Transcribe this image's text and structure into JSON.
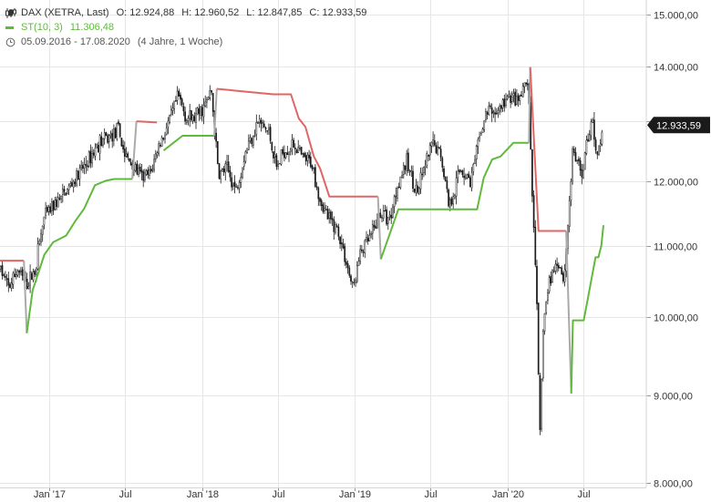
{
  "legend": {
    "title": "DAX (XETRA, Last)",
    "ohlc": [
      {
        "k": "O:",
        "v": "12.924,88"
      },
      {
        "k": "H:",
        "v": "12.960,52"
      },
      {
        "k": "L:",
        "v": "12.847,85"
      },
      {
        "k": "C:",
        "v": "12.933,59"
      }
    ],
    "indicator_name": "ST(10, 3)",
    "indicator_value": "11.306,48",
    "range": "05.09.2016 - 17.08.2020",
    "duration": "(4 Jahre, 1 Woche)"
  },
  "chart_data": {
    "type": "line",
    "yscale": "log",
    "ylim": [
      7950,
      15300
    ],
    "y_ticks": [
      {
        "v": 15000,
        "label": "15.000,00"
      },
      {
        "v": 14000,
        "label": "14.000,00"
      },
      {
        "v": 13000,
        "label": "13.000,00"
      },
      {
        "v": 12000,
        "label": "12.000,00"
      },
      {
        "v": 11000,
        "label": "11.000,00"
      },
      {
        "v": 10000,
        "label": "10.000,00"
      },
      {
        "v": 9000,
        "label": "9.000,00"
      },
      {
        "v": 8000,
        "label": "8.000,00"
      }
    ],
    "xlim": [
      "2016-09-05",
      "2020-08-17"
    ],
    "x_ticks": [
      {
        "d": "2017-01-01",
        "label": "Jan '17"
      },
      {
        "d": "2017-07-01",
        "label": "Jul"
      },
      {
        "d": "2018-01-01",
        "label": "Jan '18"
      },
      {
        "d": "2018-07-01",
        "label": "Jul"
      },
      {
        "d": "2019-01-01",
        "label": "Jan '19"
      },
      {
        "d": "2019-07-01",
        "label": "Jul"
      },
      {
        "d": "2020-01-01",
        "label": "Jan '20"
      },
      {
        "d": "2020-07-01",
        "label": "Jul"
      }
    ],
    "last_close": {
      "v": 12933.59,
      "label": "12.933,59"
    },
    "grid": true,
    "colors": {
      "candles": "#1a1a1a",
      "st_up": "#5fba3c",
      "st_down": "#e06666",
      "st_flip": "#aaaaaa",
      "last_label_bg": "#1a1a1a",
      "grid": "#e6e6e6"
    },
    "series": [
      {
        "name": "DAX (XETRA, Last)",
        "kind": "close",
        "points": [
          [
            "2016-09-05",
            10670
          ],
          [
            "2016-09-26",
            10390
          ],
          [
            "2016-10-17",
            10650
          ],
          [
            "2016-11-07",
            10430
          ],
          [
            "2016-11-28",
            10650
          ],
          [
            "2016-12-05",
            10950
          ],
          [
            "2016-12-19",
            11400
          ],
          [
            "2017-01-09",
            11600
          ],
          [
            "2017-02-01",
            11750
          ],
          [
            "2017-03-01",
            12000
          ],
          [
            "2017-04-01",
            12300
          ],
          [
            "2017-05-01",
            12650
          ],
          [
            "2017-05-20",
            12700
          ],
          [
            "2017-06-15",
            12850
          ],
          [
            "2017-07-01",
            12400
          ],
          [
            "2017-07-20",
            12250
          ],
          [
            "2017-08-10",
            12050
          ],
          [
            "2017-08-30",
            12100
          ],
          [
            "2017-09-15",
            12500
          ],
          [
            "2017-10-15",
            13000
          ],
          [
            "2017-11-05",
            13450
          ],
          [
            "2017-11-25",
            13050
          ],
          [
            "2017-12-15",
            13050
          ],
          [
            "2018-01-10",
            13300
          ],
          [
            "2018-01-23",
            13550
          ],
          [
            "2018-02-09",
            12100
          ],
          [
            "2018-03-01",
            12200
          ],
          [
            "2018-03-23",
            11850
          ],
          [
            "2018-04-15",
            12500
          ],
          [
            "2018-05-15",
            13000
          ],
          [
            "2018-06-10",
            12800
          ],
          [
            "2018-06-28",
            12200
          ],
          [
            "2018-07-15",
            12500
          ],
          [
            "2018-08-10",
            12600
          ],
          [
            "2018-08-30",
            12350
          ],
          [
            "2018-09-20",
            12300
          ],
          [
            "2018-10-10",
            11700
          ],
          [
            "2018-10-30",
            11400
          ],
          [
            "2018-11-20",
            11250
          ],
          [
            "2018-12-10",
            10800
          ],
          [
            "2018-12-27",
            10380
          ],
          [
            "2019-01-15",
            10900
          ],
          [
            "2019-02-10",
            11150
          ],
          [
            "2019-03-01",
            11500
          ],
          [
            "2019-03-25",
            11400
          ],
          [
            "2019-04-15",
            12000
          ],
          [
            "2019-05-05",
            12300
          ],
          [
            "2019-05-30",
            11800
          ],
          [
            "2019-06-20",
            12300
          ],
          [
            "2019-07-05",
            12600
          ],
          [
            "2019-07-25",
            12450
          ],
          [
            "2019-08-15",
            11600
          ],
          [
            "2019-09-10",
            12200
          ],
          [
            "2019-10-05",
            12000
          ],
          [
            "2019-10-30",
            12850
          ],
          [
            "2019-11-15",
            13200
          ],
          [
            "2019-12-05",
            13150
          ],
          [
            "2019-12-20",
            13300
          ],
          [
            "2020-01-10",
            13450
          ],
          [
            "2020-01-25",
            13300
          ],
          [
            "2020-02-19",
            13750
          ],
          [
            "2020-02-28",
            11900
          ],
          [
            "2020-03-09",
            10600
          ],
          [
            "2020-03-18",
            8450
          ],
          [
            "2020-03-26",
            9900
          ],
          [
            "2020-04-10",
            10500
          ],
          [
            "2020-04-30",
            10800
          ],
          [
            "2020-05-15",
            10500
          ],
          [
            "2020-06-05",
            12500
          ],
          [
            "2020-06-26",
            12100
          ],
          [
            "2020-07-10",
            12700
          ],
          [
            "2020-07-22",
            13100
          ],
          [
            "2020-07-31",
            12300
          ],
          [
            "2020-08-17",
            12933
          ]
        ]
      },
      {
        "name": "ST(10, 3)",
        "kind": "supertrend",
        "segments": [
          {
            "trend": "down",
            "points": [
              [
                "2016-09-05",
                10780
              ],
              [
                "2016-11-01",
                10780
              ]
            ]
          },
          {
            "trend": "flip",
            "points": [
              [
                "2016-11-01",
                10780
              ],
              [
                "2016-11-08",
                9780
              ]
            ]
          },
          {
            "trend": "up",
            "points": [
              [
                "2016-11-08",
                9780
              ],
              [
                "2016-11-22",
                10360
              ],
              [
                "2016-12-20",
                10870
              ],
              [
                "2017-01-10",
                11050
              ],
              [
                "2017-02-10",
                11150
              ],
              [
                "2017-03-05",
                11380
              ],
              [
                "2017-03-25",
                11560
              ],
              [
                "2017-04-20",
                11930
              ],
              [
                "2017-05-15",
                12000
              ],
              [
                "2017-06-05",
                12030
              ],
              [
                "2017-07-18",
                12030
              ]
            ]
          },
          {
            "trend": "flip",
            "points": [
              [
                "2017-07-18",
                12030
              ],
              [
                "2017-07-28",
                13000
              ]
            ]
          },
          {
            "trend": "down",
            "points": [
              [
                "2017-07-28",
                13000
              ],
              [
                "2017-09-15",
                12980
              ]
            ]
          },
          {
            "trend": "up",
            "points": [
              [
                "2017-10-01",
                12500
              ],
              [
                "2017-11-15",
                12750
              ],
              [
                "2018-01-30",
                12750
              ]
            ]
          },
          {
            "trend": "flip",
            "points": [
              [
                "2018-01-30",
                12750
              ],
              [
                "2018-02-05",
                13580
              ]
            ]
          },
          {
            "trend": "down",
            "points": [
              [
                "2018-02-05",
                13580
              ],
              [
                "2018-06-20",
                13480
              ],
              [
                "2018-08-01",
                13480
              ],
              [
                "2018-08-20",
                13050
              ],
              [
                "2018-09-05",
                12900
              ],
              [
                "2018-09-25",
                12400
              ],
              [
                "2018-10-10",
                12200
              ],
              [
                "2018-11-01",
                11750
              ],
              [
                "2019-02-25",
                11750
              ]
            ]
          },
          {
            "trend": "flip",
            "points": [
              [
                "2019-02-25",
                11750
              ],
              [
                "2019-03-04",
                10800
              ]
            ]
          },
          {
            "trend": "up",
            "points": [
              [
                "2019-03-04",
                10800
              ],
              [
                "2019-04-15",
                11550
              ],
              [
                "2019-08-01",
                11550
              ],
              [
                "2019-10-20",
                11550
              ],
              [
                "2019-11-05",
                12050
              ],
              [
                "2019-11-25",
                12350
              ],
              [
                "2019-12-15",
                12400
              ],
              [
                "2020-01-15",
                12630
              ],
              [
                "2020-02-21",
                12630
              ]
            ]
          },
          {
            "trend": "flip",
            "points": [
              [
                "2020-02-21",
                12630
              ],
              [
                "2020-02-24",
                13980
              ]
            ]
          },
          {
            "trend": "down",
            "points": [
              [
                "2020-02-24",
                13980
              ],
              [
                "2020-03-15",
                11220
              ],
              [
                "2020-05-20",
                11220
              ]
            ]
          },
          {
            "trend": "flip",
            "points": [
              [
                "2020-05-20",
                11220
              ],
              [
                "2020-06-01",
                9020
              ]
            ]
          },
          {
            "trend": "up",
            "points": [
              [
                "2020-06-01",
                9020
              ],
              [
                "2020-06-05",
                9950
              ],
              [
                "2020-07-01",
                9950
              ],
              [
                "2020-07-15",
                10380
              ],
              [
                "2020-07-29",
                10830
              ],
              [
                "2020-08-05",
                10830
              ],
              [
                "2020-08-12",
                11000
              ],
              [
                "2020-08-17",
                11306
              ]
            ]
          }
        ]
      }
    ]
  }
}
